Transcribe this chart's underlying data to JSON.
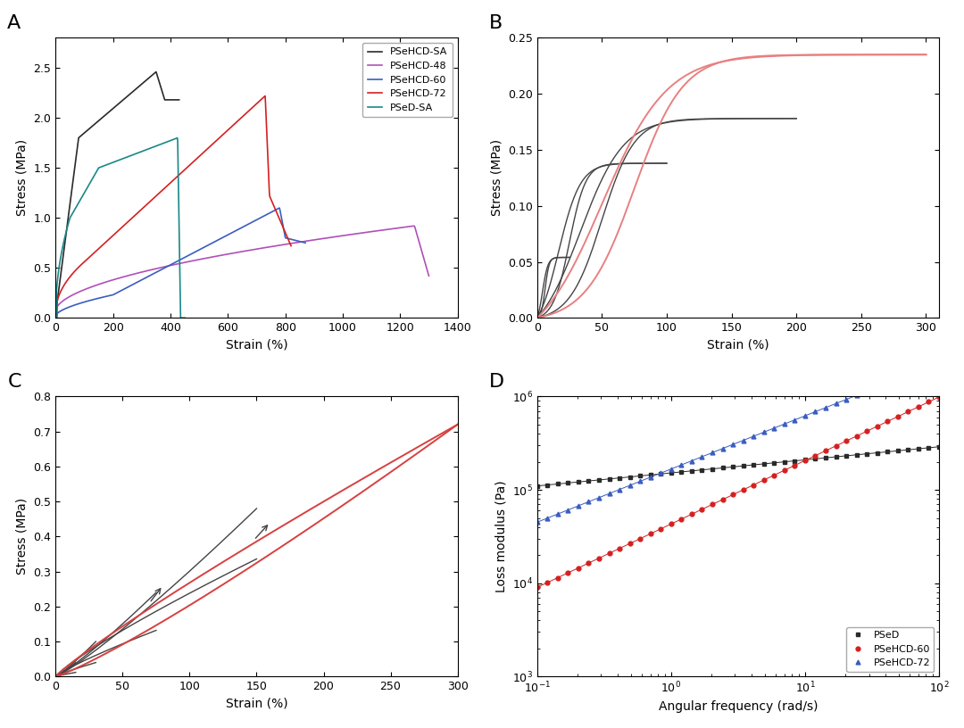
{
  "panel_label_fontsize": 16,
  "A": {
    "xlabel": "Strain (%)",
    "ylabel": "Stress (MPa)",
    "xlim": [
      0,
      1400
    ],
    "ylim": [
      0,
      2.8
    ],
    "xticks": [
      0,
      200,
      400,
      600,
      800,
      1000,
      1200,
      1400
    ],
    "yticks": [
      0.0,
      0.5,
      1.0,
      1.5,
      2.0,
      2.5
    ],
    "legend": [
      "PSeHCD-SA",
      "PSeHCD-48",
      "PSeHCD-60",
      "PSeHCD-72",
      "PSeD-SA"
    ],
    "colors": [
      "#2a2a2a",
      "#b050b8",
      "#3a5dbf",
      "#d42020",
      "#1a8888"
    ]
  },
  "B": {
    "xlabel": "Strain (%)",
    "ylabel": "Stress (MPa)",
    "xlim": [
      0,
      310
    ],
    "ylim": [
      0,
      0.25
    ],
    "xticks": [
      0,
      50,
      100,
      150,
      200,
      250,
      300
    ],
    "yticks": [
      0.0,
      0.05,
      0.1,
      0.15,
      0.2,
      0.25
    ],
    "gray_color": "#444444",
    "pink_color": "#e88080"
  },
  "C": {
    "xlabel": "Strain (%)",
    "ylabel": "Stress (MPa)",
    "xlim": [
      0,
      300
    ],
    "ylim": [
      0,
      0.8
    ],
    "xticks": [
      0,
      50,
      100,
      150,
      200,
      250,
      300
    ],
    "yticks": [
      0.0,
      0.1,
      0.2,
      0.3,
      0.4,
      0.5,
      0.6,
      0.7,
      0.8
    ],
    "gray_color": "#444444",
    "red_color": "#d84040"
  },
  "D": {
    "xlabel": "Angular frequency (rad/s)",
    "ylabel": "Loss modulus (Pa)",
    "legend": [
      "PSeD",
      "PSeHCD-60",
      "PSeHCD-72"
    ],
    "colors": [
      "#2a2a2a",
      "#d42020",
      "#3a5dbf"
    ]
  }
}
